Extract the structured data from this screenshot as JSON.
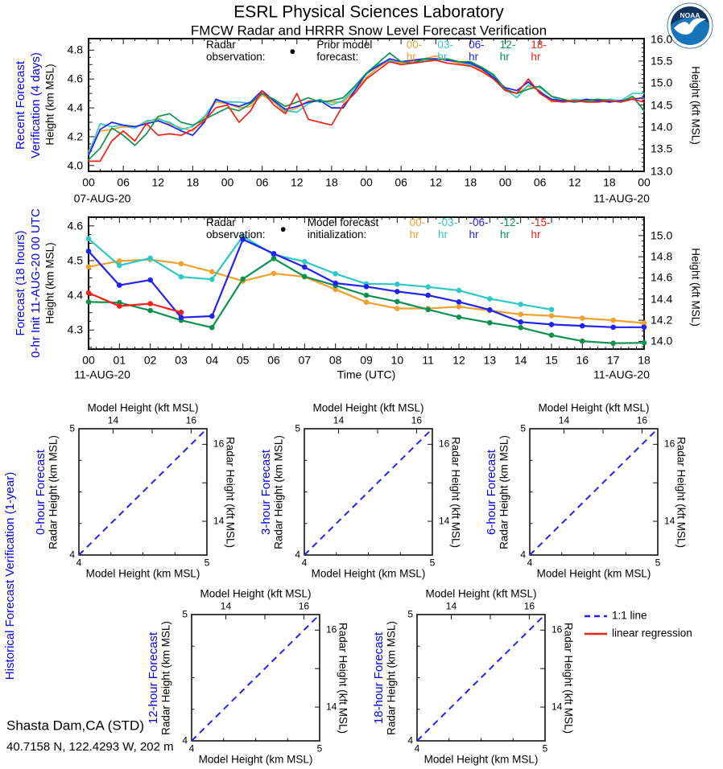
{
  "page": {
    "title": "ESRL Physical Sciences Laboratory",
    "subtitle": "FMCW Radar and HRRR Snow Level Forecast Verification",
    "station_name": "Shasta Dam,CA (STD)",
    "station_coords": "40.7158 N, 122.4293 W, 202 m",
    "logo_text": "NOAA"
  },
  "colors": {
    "label_blue": "#0000EE",
    "frame": "#111111",
    "logo_navy": "#12355F",
    "logo_blue": "#1874B8"
  },
  "sections": {
    "recent": {
      "line1": "Recent Forecast",
      "line2": "Verification (4 days)"
    },
    "forecast18": {
      "line1": "Forecast (18 hours)",
      "line2": "0-hr Init 11-AUG-20 00 UTC"
    },
    "historical": {
      "label": "Historical Forecast Verification (1-year)"
    }
  },
  "chart_data": [
    {
      "id": "recent-forecast-verification",
      "type": "line",
      "legend": {
        "obs_text": "Radar observation:",
        "marker": "●",
        "model_text": "Prior model forecast:"
      },
      "xlim": [
        0,
        96
      ],
      "x_step_hours": 2,
      "x_major_every": 6,
      "x_major_labels": [
        "00",
        "06",
        "12",
        "18",
        "00",
        "06",
        "12",
        "18",
        "00",
        "06",
        "12",
        "18",
        "00",
        "06",
        "12",
        "18",
        "00"
      ],
      "x_date_left": "07-AUG-20",
      "x_date_right": "11-AUG-20",
      "ylabel_left": "Height (km MSL)",
      "ylabel_right": "Height (kft MSL)",
      "ylim_km": [
        3.96,
        4.88
      ],
      "ytick_km": [
        4.0,
        4.2,
        4.4,
        4.6,
        4.8
      ],
      "ytick_labels_km": [
        "4.0",
        "4.2",
        "4.4",
        "4.6",
        "4.8"
      ],
      "ytick_kft": [
        13.0,
        13.5,
        14.0,
        14.5,
        15.0,
        15.5,
        16.0
      ],
      "ytick_labels_kft": [
        "13.0",
        "13.5",
        "14.0",
        "14.5",
        "15.0",
        "15.5",
        "16.0"
      ],
      "series": [
        {
          "label": "00-hr",
          "color": "#F0A030",
          "values": [
            4.1,
            4.24,
            4.25,
            4.27,
            4.26,
            4.3,
            4.33,
            4.29,
            4.26,
            4.24,
            4.33,
            4.44,
            4.43,
            4.4,
            4.41,
            4.49,
            4.44,
            4.37,
            4.4,
            4.45,
            4.45,
            4.44,
            4.44,
            4.52,
            4.61,
            4.68,
            4.73,
            4.71,
            4.72,
            4.74,
            4.76,
            4.73,
            4.71,
            4.7,
            4.66,
            4.6,
            4.53,
            4.5,
            4.55,
            4.52,
            4.44,
            4.45,
            4.44,
            4.45,
            4.46,
            4.44,
            4.45,
            4.47,
            4.46
          ]
        },
        {
          "label": "03-hr",
          "color": "#2EC8C8",
          "values": [
            4.08,
            4.29,
            4.27,
            4.28,
            4.26,
            4.31,
            4.32,
            4.3,
            4.25,
            4.27,
            4.34,
            4.45,
            4.44,
            4.44,
            4.43,
            4.5,
            4.45,
            4.38,
            4.37,
            4.43,
            4.46,
            4.42,
            4.45,
            4.54,
            4.63,
            4.7,
            4.73,
            4.7,
            4.71,
            4.73,
            4.74,
            4.73,
            4.72,
            4.7,
            4.68,
            4.62,
            4.53,
            4.47,
            4.56,
            4.54,
            4.48,
            4.44,
            4.46,
            4.45,
            4.45,
            4.46,
            4.45,
            4.5,
            4.5
          ]
        },
        {
          "label": "06-hr",
          "color": "#2222EE",
          "values": [
            4.07,
            4.25,
            4.3,
            4.28,
            4.27,
            4.29,
            4.31,
            4.28,
            4.24,
            4.21,
            4.3,
            4.46,
            4.43,
            4.41,
            4.44,
            4.52,
            4.45,
            4.39,
            4.41,
            4.44,
            4.45,
            4.4,
            4.4,
            4.52,
            4.64,
            4.69,
            4.74,
            4.72,
            4.73,
            4.74,
            4.74,
            4.73,
            4.72,
            4.71,
            4.67,
            4.61,
            4.54,
            4.52,
            4.58,
            4.51,
            4.46,
            4.45,
            4.44,
            4.46,
            4.45,
            4.44,
            4.45,
            4.46,
            4.47
          ]
        },
        {
          "label": "12-hr",
          "color": "#0D9150",
          "values": [
            4.04,
            4.12,
            4.26,
            4.21,
            4.14,
            4.22,
            4.34,
            4.36,
            4.3,
            4.28,
            4.32,
            4.36,
            4.4,
            4.38,
            4.43,
            4.5,
            4.46,
            4.41,
            4.44,
            4.47,
            4.44,
            4.45,
            4.47,
            4.55,
            4.64,
            4.71,
            4.78,
            4.72,
            4.71,
            4.74,
            4.73,
            4.74,
            4.72,
            4.72,
            4.68,
            4.63,
            4.53,
            4.5,
            4.53,
            4.55,
            4.48,
            4.46,
            4.44,
            4.45,
            4.46,
            4.45,
            4.44,
            4.48,
            4.38
          ]
        },
        {
          "label": "18-hr",
          "color": "#F42118",
          "values": [
            4.03,
            4.03,
            4.17,
            4.24,
            4.17,
            4.29,
            4.21,
            4.22,
            4.21,
            4.25,
            4.31,
            4.4,
            4.42,
            4.3,
            4.38,
            4.52,
            4.42,
            4.36,
            4.5,
            4.32,
            4.3,
            4.28,
            4.42,
            4.5,
            4.6,
            4.66,
            4.72,
            4.7,
            4.71,
            4.72,
            4.73,
            4.71,
            4.7,
            4.69,
            4.65,
            4.6,
            4.52,
            4.5,
            4.6,
            4.5,
            4.45,
            4.44,
            4.45,
            4.44,
            4.44,
            4.45,
            4.44,
            4.46,
            4.44
          ]
        }
      ]
    },
    {
      "id": "forecast-18-hours",
      "type": "line",
      "legend": {
        "obs_text": "Radar observation:",
        "marker": "●",
        "model_text": "Model forecast initialization:"
      },
      "xlim": [
        0,
        18
      ],
      "x_step_hours": 1,
      "x_major_every": 1,
      "x_major_labels": [
        "00",
        "01",
        "02",
        "03",
        "04",
        "05",
        "06",
        "07",
        "08",
        "09",
        "10",
        "11",
        "12",
        "13",
        "14",
        "15",
        "16",
        "17",
        "18"
      ],
      "x_date_left": "11-AUG-20",
      "x_date_right": "11-AUG-20",
      "xlabel": "Time (UTC)",
      "ylabel_left": "Height (km MSL)",
      "ylabel_right": "Height (kft MSL)",
      "ylim_km": [
        4.245,
        4.625
      ],
      "ytick_km": [
        4.3,
        4.4,
        4.5,
        4.6
      ],
      "ytick_labels_km": [
        "4.3",
        "4.4",
        "4.5",
        "4.6"
      ],
      "ytick_kft": [
        14.0,
        14.2,
        14.4,
        14.6,
        14.8,
        15.0
      ],
      "ytick_labels_kft": [
        "14.0",
        "14.2",
        "14.4",
        "14.6",
        "14.8",
        "15.0"
      ],
      "series": [
        {
          "label": "00-hr",
          "color": "#F0A030",
          "values": [
            4.482,
            4.499,
            4.503,
            4.491,
            4.468,
            4.441,
            4.463,
            4.453,
            4.417,
            4.38,
            4.362,
            4.362,
            4.367,
            4.356,
            4.345,
            4.341,
            4.334,
            4.328,
            4.32
          ]
        },
        {
          "label": "-03-hr",
          "color": "#2EC8C8",
          "values": [
            4.563,
            4.486,
            4.507,
            4.453,
            4.446,
            4.57,
            4.517,
            4.497,
            4.462,
            4.433,
            4.432,
            4.424,
            4.414,
            4.39,
            4.374,
            4.359,
            null,
            null,
            null
          ]
        },
        {
          "label": "-12-hr",
          "color": "#0D9150",
          "values": [
            4.381,
            4.379,
            4.356,
            4.328,
            4.307,
            4.447,
            4.506,
            4.454,
            4.428,
            4.4,
            4.382,
            4.359,
            4.337,
            4.321,
            4.307,
            4.285,
            4.268,
            4.262,
            4.263
          ]
        },
        {
          "label": "-06-hr",
          "color": "#2222EE",
          "values": [
            4.527,
            4.429,
            4.444,
            4.336,
            4.34,
            4.561,
            4.52,
            4.481,
            4.435,
            4.425,
            4.411,
            4.4,
            4.381,
            4.358,
            4.323,
            4.316,
            4.312,
            4.308,
            4.308
          ]
        },
        {
          "label": "-15-hr",
          "color": "#F42118",
          "values": [
            4.407,
            4.369,
            4.376,
            4.351,
            null,
            null,
            null,
            null,
            null,
            null,
            null,
            null,
            null,
            null,
            null,
            null,
            null,
            null,
            null
          ]
        }
      ],
      "legend_order": [
        "00-hr",
        "-03-hr",
        "-06-hr",
        "-12-hr",
        "-15-hr"
      ]
    },
    {
      "id": "historical-forecast-verification",
      "type": "scatter",
      "panels": [
        {
          "title": "0-hour Forecast"
        },
        {
          "title": "3-hour Forecast"
        },
        {
          "title": "6-hour Forecast"
        },
        {
          "title": "12-hour Forecast"
        },
        {
          "title": "18-hour Forecast"
        }
      ],
      "axis_top": "Model Height (kft MSL)",
      "axis_bottom": "Model Height (km MSL)",
      "axis_left": "Radar Height (km MSL)",
      "axis_right": "Radar Height (kft MSL)",
      "xlim": [
        4,
        5
      ],
      "ylim": [
        4,
        5
      ],
      "km_ticks": [
        4,
        5
      ],
      "km_tick_labels": [
        "4",
        "5"
      ],
      "km_minor_ticks": [
        4.25,
        4.5,
        4.75
      ],
      "kft_ticks": [
        14,
        15,
        16
      ],
      "kft_tick_labels": [
        "14",
        "",
        "16"
      ],
      "diagonal": {
        "from": [
          4,
          4
        ],
        "to": [
          5,
          5
        ]
      },
      "legend": [
        {
          "label": "1:1 line",
          "color": "#2222F5",
          "dashed": true
        },
        {
          "label": "linear regression",
          "color": "#E8241C",
          "dashed": false
        }
      ]
    }
  ]
}
